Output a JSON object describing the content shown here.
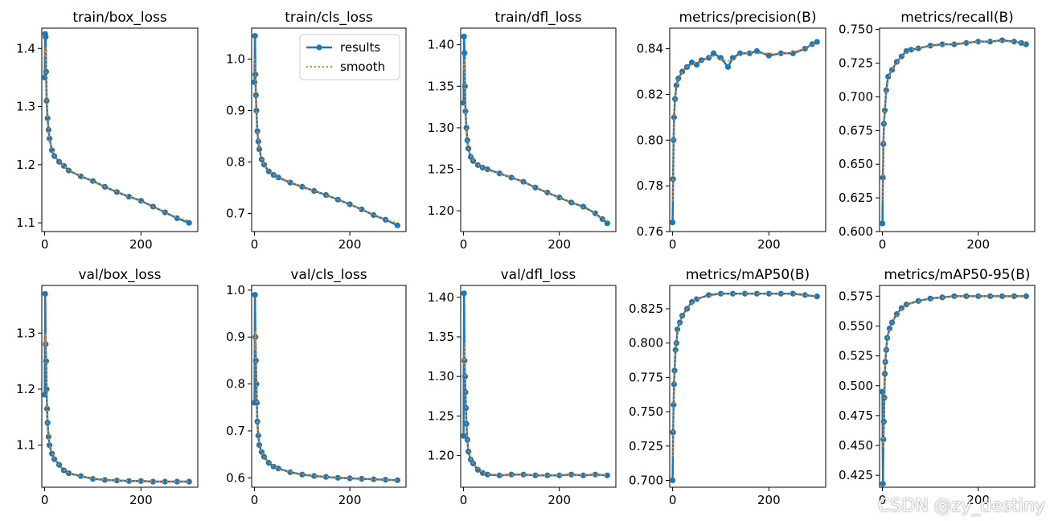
{
  "watermark": "CSDN @zy_destiny",
  "legend": {
    "results": "results",
    "smooth": "smooth"
  },
  "colors": {
    "results": "#1f77b4",
    "smooth": "#ff7f0e",
    "axes": "#000000"
  },
  "chart_data": [
    {
      "type": "line",
      "title": "train/box_loss",
      "xlim": [
        -6,
        318
      ],
      "ylim": [
        1.085,
        1.435
      ],
      "xticks": [
        0,
        200
      ],
      "yticks": [
        1.1,
        1.2,
        1.3,
        1.4
      ],
      "ytick_labels": [
        "1.1",
        "1.2",
        "1.3",
        "1.4"
      ],
      "points": [
        [
          0,
          1.35
        ],
        [
          1,
          1.425
        ],
        [
          2,
          1.42
        ],
        [
          3,
          1.36
        ],
        [
          4,
          1.31
        ],
        [
          6,
          1.28
        ],
        [
          8,
          1.26
        ],
        [
          10,
          1.245
        ],
        [
          15,
          1.225
        ],
        [
          20,
          1.215
        ],
        [
          30,
          1.205
        ],
        [
          40,
          1.198
        ],
        [
          50,
          1.19
        ],
        [
          75,
          1.18
        ],
        [
          100,
          1.172
        ],
        [
          125,
          1.162
        ],
        [
          150,
          1.153
        ],
        [
          175,
          1.145
        ],
        [
          200,
          1.138
        ],
        [
          225,
          1.128
        ],
        [
          250,
          1.118
        ],
        [
          275,
          1.108
        ],
        [
          300,
          1.1
        ]
      ]
    },
    {
      "type": "line",
      "title": "train/cls_loss",
      "xlim": [
        -6,
        318
      ],
      "ylim": [
        0.665,
        1.06
      ],
      "xticks": [
        0,
        200
      ],
      "yticks": [
        0.7,
        0.8,
        0.9,
        1.0
      ],
      "ytick_labels": [
        "0.7",
        "0.8",
        "0.9",
        "1.0"
      ],
      "legend": true,
      "points": [
        [
          0,
          0.955
        ],
        [
          1,
          1.045
        ],
        [
          2,
          0.97
        ],
        [
          3,
          0.93
        ],
        [
          4,
          0.9
        ],
        [
          6,
          0.86
        ],
        [
          8,
          0.84
        ],
        [
          10,
          0.825
        ],
        [
          15,
          0.805
        ],
        [
          20,
          0.795
        ],
        [
          30,
          0.782
        ],
        [
          40,
          0.775
        ],
        [
          50,
          0.77
        ],
        [
          75,
          0.76
        ],
        [
          100,
          0.752
        ],
        [
          125,
          0.744
        ],
        [
          150,
          0.736
        ],
        [
          175,
          0.727
        ],
        [
          200,
          0.718
        ],
        [
          225,
          0.708
        ],
        [
          250,
          0.697
        ],
        [
          275,
          0.688
        ],
        [
          300,
          0.677
        ]
      ]
    },
    {
      "type": "line",
      "title": "train/dfl_loss",
      "xlim": [
        -6,
        318
      ],
      "ylim": [
        1.175,
        1.42
      ],
      "xticks": [
        0,
        200
      ],
      "yticks": [
        1.2,
        1.25,
        1.3,
        1.35,
        1.4
      ],
      "ytick_labels": [
        "1.20",
        "1.25",
        "1.30",
        "1.35",
        "1.40"
      ],
      "points": [
        [
          0,
          1.33
        ],
        [
          1,
          1.41
        ],
        [
          2,
          1.39
        ],
        [
          3,
          1.35
        ],
        [
          4,
          1.32
        ],
        [
          6,
          1.3
        ],
        [
          8,
          1.285
        ],
        [
          10,
          1.275
        ],
        [
          15,
          1.265
        ],
        [
          20,
          1.26
        ],
        [
          30,
          1.255
        ],
        [
          40,
          1.252
        ],
        [
          50,
          1.25
        ],
        [
          75,
          1.245
        ],
        [
          100,
          1.24
        ],
        [
          125,
          1.235
        ],
        [
          150,
          1.228
        ],
        [
          175,
          1.222
        ],
        [
          200,
          1.216
        ],
        [
          225,
          1.21
        ],
        [
          250,
          1.205
        ],
        [
          275,
          1.197
        ],
        [
          290,
          1.19
        ],
        [
          300,
          1.185
        ]
      ]
    },
    {
      "type": "line",
      "title": "metrics/precision(B)",
      "xlim": [
        -6,
        318
      ],
      "ylim": [
        0.76,
        0.849
      ],
      "xticks": [
        0,
        200
      ],
      "yticks": [
        0.76,
        0.78,
        0.8,
        0.82,
        0.84
      ],
      "ytick_labels": [
        "0.76",
        "0.78",
        "0.80",
        "0.82",
        "0.84"
      ],
      "points": [
        [
          0,
          0.764
        ],
        [
          1,
          0.783
        ],
        [
          2,
          0.8
        ],
        [
          3,
          0.81
        ],
        [
          5,
          0.818
        ],
        [
          8,
          0.824
        ],
        [
          12,
          0.827
        ],
        [
          20,
          0.83
        ],
        [
          30,
          0.832
        ],
        [
          40,
          0.834
        ],
        [
          50,
          0.833
        ],
        [
          60,
          0.835
        ],
        [
          75,
          0.836
        ],
        [
          85,
          0.838
        ],
        [
          100,
          0.836
        ],
        [
          115,
          0.832
        ],
        [
          125,
          0.836
        ],
        [
          140,
          0.838
        ],
        [
          160,
          0.838
        ],
        [
          175,
          0.839
        ],
        [
          200,
          0.837
        ],
        [
          225,
          0.838
        ],
        [
          250,
          0.838
        ],
        [
          275,
          0.84
        ],
        [
          290,
          0.842
        ],
        [
          300,
          0.843
        ]
      ]
    },
    {
      "type": "line",
      "title": "metrics/recall(B)",
      "xlim": [
        -6,
        318
      ],
      "ylim": [
        0.6,
        0.751
      ],
      "xticks": [
        0,
        200
      ],
      "yticks": [
        0.6,
        0.625,
        0.65,
        0.675,
        0.7,
        0.725,
        0.75
      ],
      "ytick_labels": [
        "0.600",
        "0.625",
        "0.650",
        "0.675",
        "0.700",
        "0.725",
        "0.750"
      ],
      "points": [
        [
          0,
          0.606
        ],
        [
          1,
          0.64
        ],
        [
          2,
          0.665
        ],
        [
          3,
          0.68
        ],
        [
          5,
          0.69
        ],
        [
          8,
          0.705
        ],
        [
          12,
          0.715
        ],
        [
          20,
          0.72
        ],
        [
          30,
          0.726
        ],
        [
          40,
          0.73
        ],
        [
          50,
          0.734
        ],
        [
          60,
          0.735
        ],
        [
          75,
          0.736
        ],
        [
          100,
          0.738
        ],
        [
          125,
          0.739
        ],
        [
          150,
          0.739
        ],
        [
          175,
          0.74
        ],
        [
          200,
          0.741
        ],
        [
          225,
          0.741
        ],
        [
          250,
          0.742
        ],
        [
          275,
          0.741
        ],
        [
          290,
          0.74
        ],
        [
          300,
          0.739
        ]
      ]
    },
    {
      "type": "line",
      "title": "val/box_loss",
      "xlim": [
        -6,
        318
      ],
      "ylim": [
        1.025,
        1.385
      ],
      "xticks": [
        0,
        200
      ],
      "yticks": [
        1.1,
        1.2,
        1.3
      ],
      "ytick_labels": [
        "1.1",
        "1.2",
        "1.3"
      ],
      "points": [
        [
          0,
          1.19
        ],
        [
          1,
          1.37
        ],
        [
          2,
          1.28
        ],
        [
          3,
          1.25
        ],
        [
          4,
          1.2
        ],
        [
          5,
          1.165
        ],
        [
          6,
          1.14
        ],
        [
          8,
          1.115
        ],
        [
          10,
          1.1
        ],
        [
          15,
          1.085
        ],
        [
          20,
          1.075
        ],
        [
          30,
          1.065
        ],
        [
          40,
          1.055
        ],
        [
          50,
          1.05
        ],
        [
          75,
          1.045
        ],
        [
          100,
          1.04
        ],
        [
          125,
          1.038
        ],
        [
          150,
          1.037
        ],
        [
          175,
          1.036
        ],
        [
          200,
          1.036
        ],
        [
          225,
          1.035
        ],
        [
          250,
          1.035
        ],
        [
          275,
          1.035
        ],
        [
          300,
          1.035
        ]
      ]
    },
    {
      "type": "line",
      "title": "val/cls_loss",
      "xlim": [
        -6,
        318
      ],
      "ylim": [
        0.58,
        1.01
      ],
      "xticks": [
        0,
        200
      ],
      "yticks": [
        0.6,
        0.7,
        0.8,
        0.9,
        1.0
      ],
      "ytick_labels": [
        "0.6",
        "0.7",
        "0.8",
        "0.9",
        "1.0"
      ],
      "points": [
        [
          0,
          0.76
        ],
        [
          1,
          0.99
        ],
        [
          2,
          0.9
        ],
        [
          3,
          0.85
        ],
        [
          4,
          0.8
        ],
        [
          5,
          0.76
        ],
        [
          6,
          0.72
        ],
        [
          8,
          0.69
        ],
        [
          10,
          0.67
        ],
        [
          15,
          0.655
        ],
        [
          20,
          0.645
        ],
        [
          30,
          0.632
        ],
        [
          40,
          0.624
        ],
        [
          50,
          0.62
        ],
        [
          75,
          0.612
        ],
        [
          100,
          0.607
        ],
        [
          125,
          0.604
        ],
        [
          150,
          0.602
        ],
        [
          175,
          0.6
        ],
        [
          200,
          0.599
        ],
        [
          225,
          0.598
        ],
        [
          250,
          0.597
        ],
        [
          275,
          0.596
        ],
        [
          300,
          0.595
        ]
      ]
    },
    {
      "type": "line",
      "title": "val/dfl_loss",
      "xlim": [
        -6,
        318
      ],
      "ylim": [
        1.16,
        1.415
      ],
      "xticks": [
        0,
        200
      ],
      "yticks": [
        1.2,
        1.25,
        1.3,
        1.35,
        1.4
      ],
      "ytick_labels": [
        "1.20",
        "1.25",
        "1.30",
        "1.35",
        "1.40"
      ],
      "points": [
        [
          0,
          1.225
        ],
        [
          1,
          1.405
        ],
        [
          2,
          1.32
        ],
        [
          3,
          1.3
        ],
        [
          4,
          1.28
        ],
        [
          5,
          1.26
        ],
        [
          6,
          1.24
        ],
        [
          8,
          1.22
        ],
        [
          10,
          1.205
        ],
        [
          15,
          1.195
        ],
        [
          20,
          1.19
        ],
        [
          30,
          1.182
        ],
        [
          40,
          1.178
        ],
        [
          50,
          1.176
        ],
        [
          75,
          1.175
        ],
        [
          100,
          1.176
        ],
        [
          125,
          1.176
        ],
        [
          150,
          1.175
        ],
        [
          175,
          1.175
        ],
        [
          200,
          1.175
        ],
        [
          225,
          1.176
        ],
        [
          250,
          1.175
        ],
        [
          275,
          1.176
        ],
        [
          300,
          1.175
        ]
      ]
    },
    {
      "type": "line",
      "title": "metrics/mAP50(B)",
      "xlim": [
        -6,
        318
      ],
      "ylim": [
        0.695,
        0.842
      ],
      "xticks": [
        0,
        200
      ],
      "yticks": [
        0.7,
        0.725,
        0.75,
        0.775,
        0.8,
        0.825
      ],
      "ytick_labels": [
        "0.700",
        "0.725",
        "0.750",
        "0.775",
        "0.800",
        "0.825"
      ],
      "points": [
        [
          0,
          0.7
        ],
        [
          1,
          0.735
        ],
        [
          2,
          0.755
        ],
        [
          3,
          0.77
        ],
        [
          4,
          0.78
        ],
        [
          6,
          0.795
        ],
        [
          8,
          0.8
        ],
        [
          10,
          0.81
        ],
        [
          15,
          0.815
        ],
        [
          20,
          0.82
        ],
        [
          30,
          0.825
        ],
        [
          40,
          0.83
        ],
        [
          50,
          0.832
        ],
        [
          75,
          0.835
        ],
        [
          100,
          0.836
        ],
        [
          125,
          0.836
        ],
        [
          150,
          0.836
        ],
        [
          175,
          0.836
        ],
        [
          200,
          0.836
        ],
        [
          225,
          0.836
        ],
        [
          250,
          0.836
        ],
        [
          275,
          0.835
        ],
        [
          300,
          0.834
        ]
      ]
    },
    {
      "type": "line",
      "title": "metrics/mAP50-95(B)",
      "xlim": [
        -6,
        318
      ],
      "ylim": [
        0.415,
        0.584
      ],
      "xticks": [
        0,
        200
      ],
      "yticks": [
        0.425,
        0.45,
        0.475,
        0.5,
        0.525,
        0.55,
        0.575
      ],
      "ytick_labels": [
        "0.425",
        "0.450",
        "0.475",
        "0.500",
        "0.525",
        "0.550",
        "0.575"
      ],
      "points": [
        [
          0,
          0.495
        ],
        [
          1,
          0.418
        ],
        [
          2,
          0.455
        ],
        [
          3,
          0.47
        ],
        [
          4,
          0.49
        ],
        [
          5,
          0.51
        ],
        [
          6,
          0.52
        ],
        [
          8,
          0.53
        ],
        [
          10,
          0.54
        ],
        [
          15,
          0.548
        ],
        [
          20,
          0.553
        ],
        [
          30,
          0.56
        ],
        [
          40,
          0.565
        ],
        [
          50,
          0.568
        ],
        [
          75,
          0.571
        ],
        [
          100,
          0.573
        ],
        [
          125,
          0.574
        ],
        [
          150,
          0.575
        ],
        [
          175,
          0.575
        ],
        [
          200,
          0.575
        ],
        [
          225,
          0.575
        ],
        [
          250,
          0.575
        ],
        [
          275,
          0.575
        ],
        [
          300,
          0.575
        ]
      ]
    }
  ]
}
